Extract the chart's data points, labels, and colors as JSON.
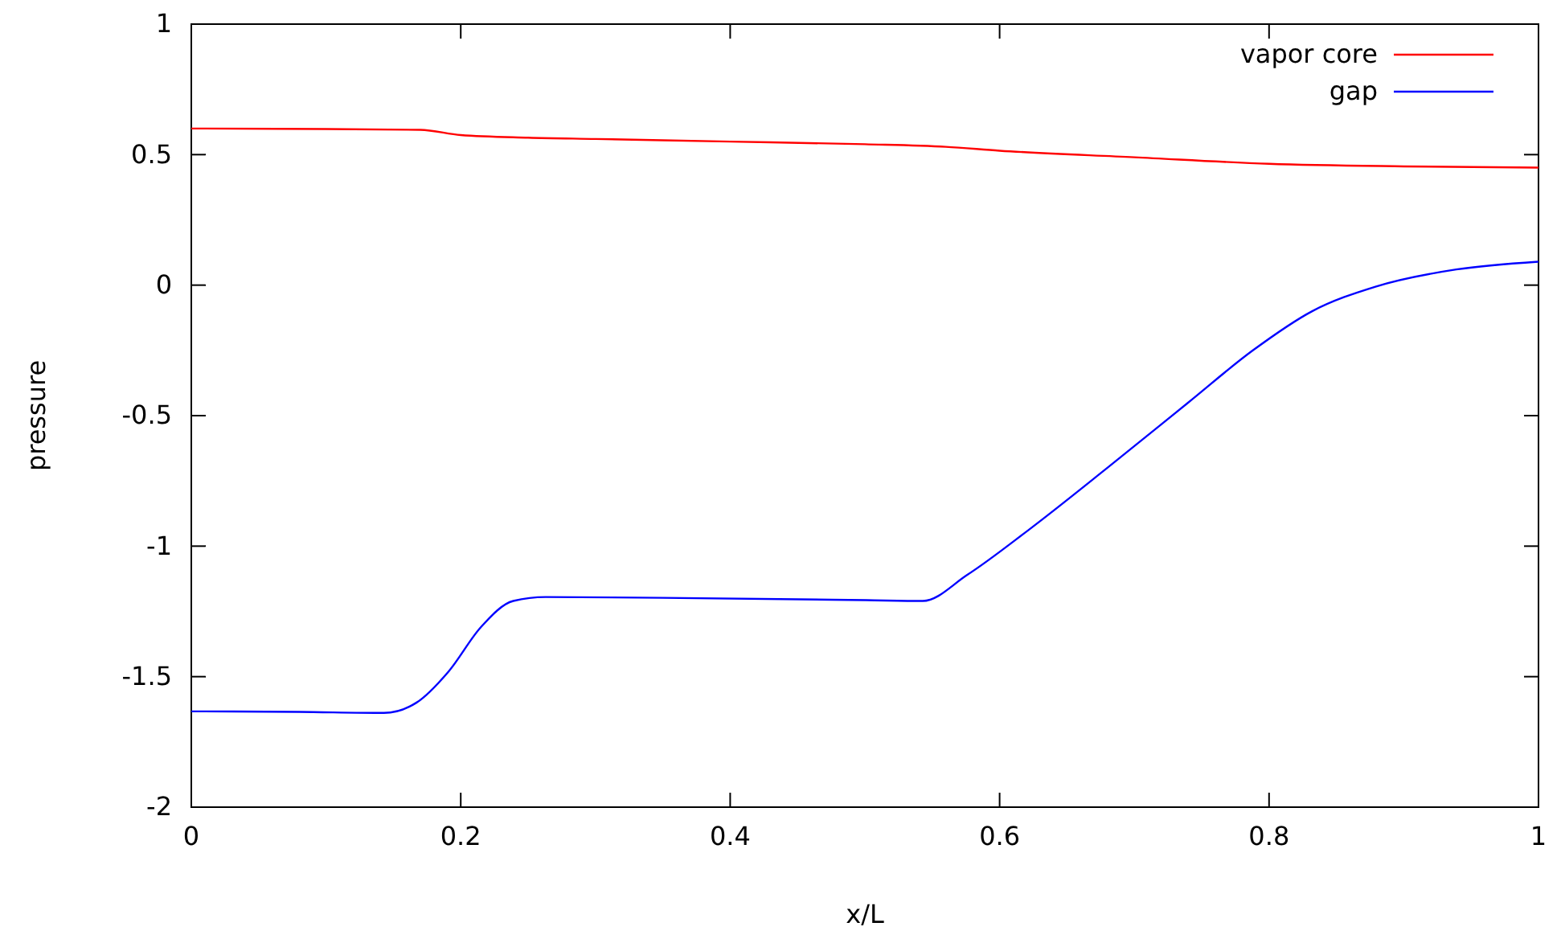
{
  "chart_data": {
    "type": "line",
    "xlabel": "x/L",
    "ylabel": "pressure",
    "xlim": [
      0,
      1
    ],
    "ylim": [
      -2,
      1
    ],
    "xticks": [
      0,
      0.2,
      0.4,
      0.6,
      0.8,
      1
    ],
    "yticks": [
      -2,
      -1.5,
      -1,
      -0.5,
      0,
      0.5,
      1
    ],
    "grid": false,
    "legend": "top right",
    "marker": "none",
    "line_style": "solid",
    "series": [
      {
        "name": "vapor core",
        "color": "#ff0000",
        "x": [
          0,
          0.1,
          0.17,
          0.2,
          0.25,
          0.3,
          0.4,
          0.5,
          0.56,
          0.6,
          0.7,
          0.8,
          0.9,
          1
        ],
        "values": [
          0.6,
          0.598,
          0.595,
          0.575,
          0.565,
          0.56,
          0.55,
          0.54,
          0.53,
          0.515,
          0.49,
          0.465,
          0.455,
          0.45
        ]
      },
      {
        "name": "gap",
        "color": "#0000ff",
        "x": [
          0,
          0.08,
          0.143,
          0.167,
          0.191,
          0.215,
          0.239,
          0.263,
          0.35,
          0.501,
          0.543,
          0.576,
          0.621,
          0.68,
          0.74,
          0.788,
          0.832,
          0.879,
          0.939,
          1
        ],
        "values": [
          -1.633,
          -1.635,
          -1.639,
          -1.6,
          -1.48,
          -1.31,
          -1.21,
          -1.195,
          -1.198,
          -1.207,
          -1.21,
          -1.11,
          -0.94,
          -0.7,
          -0.45,
          -0.25,
          -0.1,
          -0.006,
          0.06,
          0.09
        ]
      }
    ]
  }
}
